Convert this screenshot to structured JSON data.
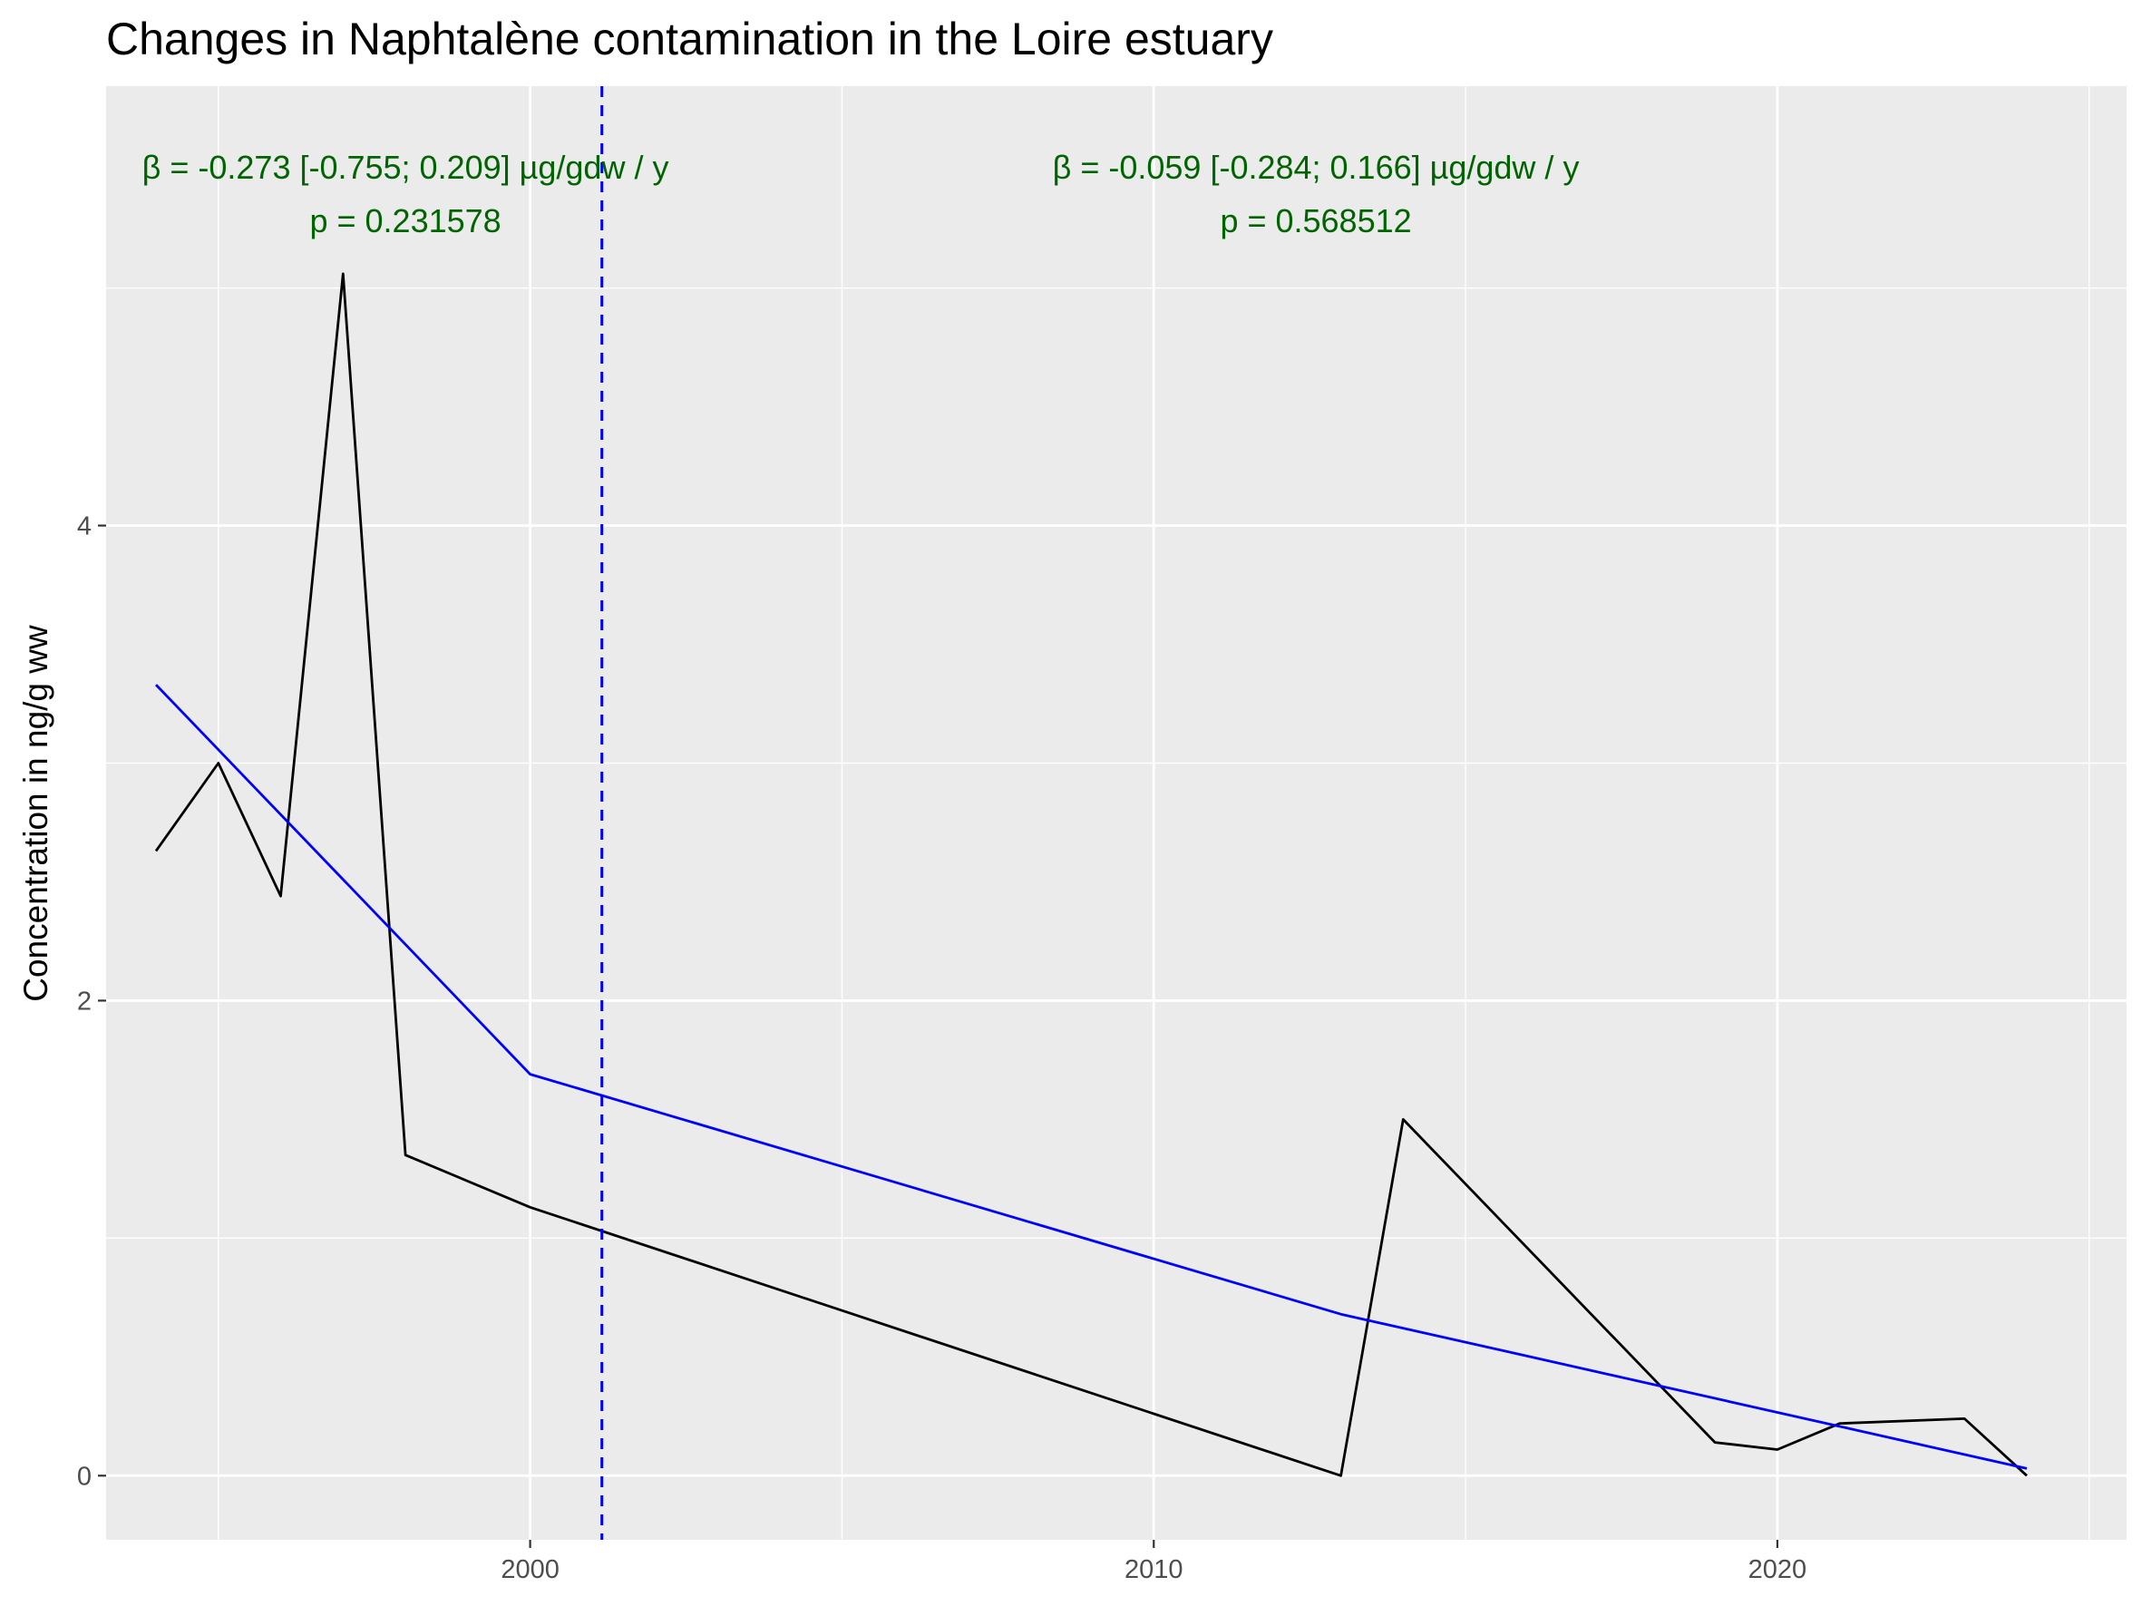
{
  "chart_data": {
    "type": "line",
    "title": "Changes in Naphtalène contamination in the Loire estuary",
    "xlabel": "",
    "ylabel": "Concentration in ng/g ww",
    "xlim": [
      1993.2,
      2025.6
    ],
    "ylim": [
      -0.27,
      5.85
    ],
    "x_ticks": [
      2000,
      2010,
      2020
    ],
    "x_tick_labels": [
      "2000",
      "2010",
      "2020"
    ],
    "x_minor_ticks": [
      1995,
      2005,
      2015,
      2025
    ],
    "y_ticks": [
      0,
      2,
      4
    ],
    "y_tick_labels": [
      "0",
      "2",
      "4"
    ],
    "y_minor_ticks": [
      1,
      3,
      5
    ],
    "grid": true,
    "series": [
      {
        "color": "#000000",
        "x": [
          1994,
          1995,
          1996,
          1997,
          1998,
          2000,
          2013,
          2014,
          2019,
          2020,
          2021,
          2023,
          2024
        ],
        "y": [
          2.63,
          3.0,
          2.44,
          5.06,
          1.35,
          1.13,
          0.0,
          1.5,
          0.14,
          0.11,
          0.22,
          0.24,
          0.0
        ]
      },
      {
        "color": "#0000ff",
        "x": [
          1994,
          2000,
          2013,
          2024
        ],
        "y": [
          3.33,
          1.69,
          0.68,
          0.03
        ]
      }
    ],
    "vline": {
      "x": 2001.15,
      "color": "#0000ff",
      "style": "dashed"
    },
    "annotations": [
      {
        "line1": "β = -0.273 [-0.755; 0.209] µg/gdw / y",
        "line2": "p = 0.231578",
        "x": 1998.0,
        "color": "#006400"
      },
      {
        "line1": "β = -0.059 [-0.284; 0.166] µg/gdw / y",
        "line2": "p = 0.568512",
        "x": 2012.6,
        "color": "#006400"
      }
    ],
    "colors": {
      "panel": "#ebebeb",
      "grid": "#ffffff",
      "annotation": "#006400"
    }
  }
}
